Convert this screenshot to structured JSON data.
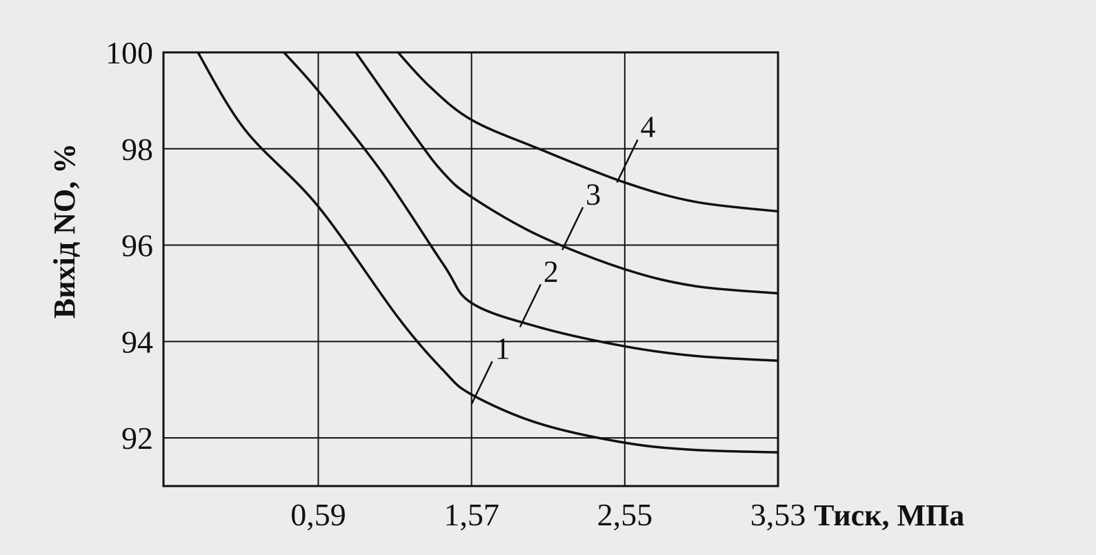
{
  "chart_data": {
    "type": "line",
    "ylabel": "Вихід NO, %",
    "xlabel": "Тиск, МПа",
    "xlim": [
      -0.4,
      3.53
    ],
    "ylim": [
      91.0,
      100.0
    ],
    "grid": true,
    "x_ticks": [
      {
        "value": 0.59,
        "label": "0,59"
      },
      {
        "value": 1.57,
        "label": "1,57"
      },
      {
        "value": 2.55,
        "label": "2,55"
      },
      {
        "value": 3.53,
        "label": "3,53"
      }
    ],
    "y_ticks": [
      {
        "value": 100,
        "label": "100"
      },
      {
        "value": 98,
        "label": "98"
      },
      {
        "value": 96,
        "label": "96"
      },
      {
        "value": 94,
        "label": "94"
      },
      {
        "value": 92,
        "label": "92"
      }
    ],
    "series": [
      {
        "name": "1",
        "points": [
          [
            -0.18,
            100
          ],
          [
            0.12,
            98.4
          ],
          [
            0.59,
            96.8
          ],
          [
            1.1,
            94.5
          ],
          [
            1.39,
            93.4
          ],
          [
            1.57,
            92.9
          ],
          [
            2.0,
            92.3
          ],
          [
            2.55,
            91.9
          ],
          [
            3.0,
            91.75
          ],
          [
            3.53,
            91.7
          ]
        ],
        "label_at": [
          1.57,
          92.7
        ]
      },
      {
        "name": "2",
        "points": [
          [
            0.37,
            100
          ],
          [
            0.59,
            99.2
          ],
          [
            1.0,
            97.5
          ],
          [
            1.39,
            95.6
          ],
          [
            1.57,
            94.8
          ],
          [
            2.0,
            94.3
          ],
          [
            2.55,
            93.9
          ],
          [
            3.0,
            93.7
          ],
          [
            3.53,
            93.6
          ]
        ],
        "label_at": [
          1.88,
          94.3
        ]
      },
      {
        "name": "3",
        "points": [
          [
            0.83,
            100
          ],
          [
            1.2,
            98.3
          ],
          [
            1.39,
            97.5
          ],
          [
            1.57,
            97.0
          ],
          [
            2.0,
            96.2
          ],
          [
            2.55,
            95.5
          ],
          [
            3.0,
            95.15
          ],
          [
            3.53,
            95.0
          ]
        ],
        "label_at": [
          2.15,
          95.9
        ]
      },
      {
        "name": "4",
        "points": [
          [
            1.1,
            100
          ],
          [
            1.3,
            99.3
          ],
          [
            1.57,
            98.6
          ],
          [
            2.0,
            98.0
          ],
          [
            2.55,
            97.3
          ],
          [
            3.0,
            96.9
          ],
          [
            3.53,
            96.7
          ]
        ],
        "label_at": [
          2.5,
          97.3
        ]
      }
    ]
  }
}
